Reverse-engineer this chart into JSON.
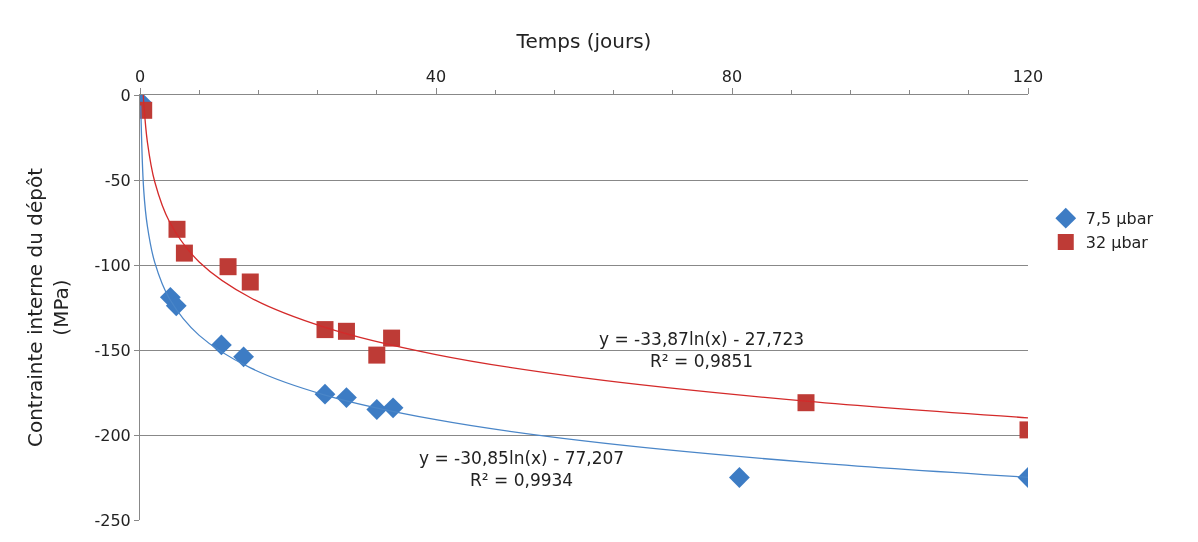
{
  "chart_data": {
    "type": "scatter",
    "xlabel": "Temps (jours)",
    "ylabel": "Contrainte interne du dépôt\n(MPa)",
    "xlim": [
      0,
      120
    ],
    "xticks": [
      0,
      40,
      80,
      120
    ],
    "ylim": [
      -250,
      0
    ],
    "yticks": [
      0,
      -50,
      -100,
      -150,
      -200,
      -250
    ],
    "grid": "y",
    "legend": "right",
    "series": [
      {
        "name": "7,5 µbar",
        "color": "#3d7cc4",
        "marker": "diamond",
        "x": [
          0.1,
          4.1,
          4.9,
          11.0,
          14.0,
          25,
          27.9,
          32,
          34.2,
          81,
          120
        ],
        "values": [
          -4,
          -119,
          -124,
          -147,
          -154,
          -176,
          -178,
          -185,
          -184,
          -225,
          -225
        ]
      },
      {
        "name": "32 µbar",
        "color": "#be3b36",
        "marker": "square",
        "x": [
          0.5,
          5,
          6,
          11.9,
          14.9,
          25,
          27.9,
          32,
          34,
          90,
          120
        ],
        "values": [
          -9,
          -79,
          -93,
          -101,
          -110,
          -138,
          -139,
          -153,
          -143,
          -181,
          -197
        ]
      },
      {
        "type": "line",
        "color": "#4a86c8",
        "marker": "none",
        "x": [
          0.1,
          0.5,
          1,
          2,
          4,
          8,
          15,
          25,
          40,
          60,
          90,
          120
        ],
        "values": [
          -6.2,
          -55.8,
          -77.2,
          -98.6,
          -120.0,
          -141.4,
          -160.7,
          -176.5,
          -191.0,
          -203.5,
          -216.0,
          -224.9
        ]
      },
      {
        "type": "line",
        "color": "#d42a2a",
        "marker": "none",
        "x": [
          0.44,
          0.5,
          1,
          2,
          4,
          8,
          15,
          25,
          40,
          60,
          90,
          120
        ],
        "values": [
          0,
          -4.2,
          -27.7,
          -51.2,
          -74.7,
          -98.2,
          -119.4,
          -136.7,
          -152.7,
          -166.4,
          -180.1,
          -189.9
        ]
      }
    ],
    "annotations": [
      "y = -33,87ln(x) - 27,723\nR² = 0,9851",
      "y = -30,85ln(x) - 77,207\nR² = 0,9934"
    ]
  }
}
